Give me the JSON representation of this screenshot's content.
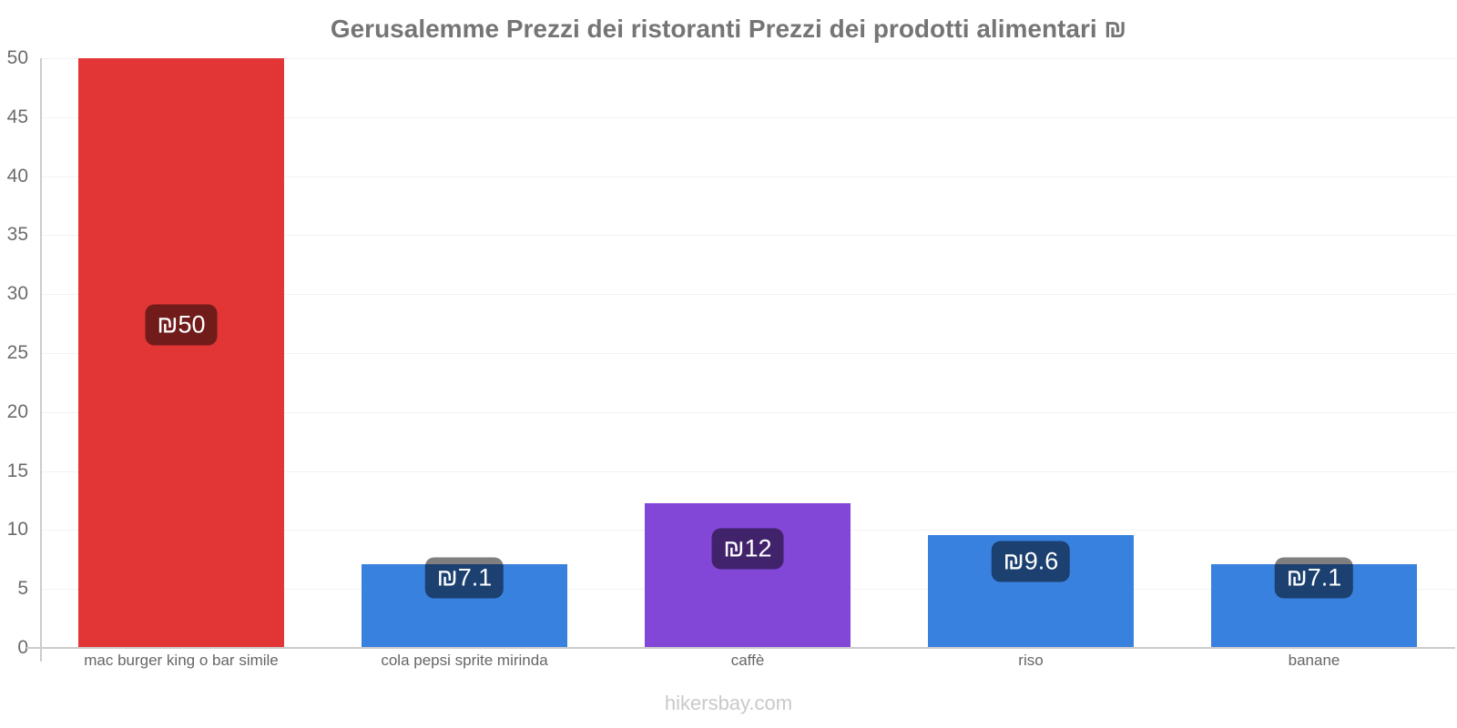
{
  "chart_data": {
    "type": "bar",
    "title": "Gerusalemme Prezzi dei ristoranti Prezzi dei prodotti alimentari ₪",
    "currency_symbol": "₪",
    "categories": [
      "mac burger king o bar simile",
      "cola pepsi sprite mirinda",
      "caffè",
      "riso",
      "banane"
    ],
    "values": [
      50,
      7.1,
      12.3,
      9.6,
      7.1
    ],
    "data_labels": [
      "₪50",
      "₪7.1",
      "₪12",
      "₪9.6",
      "₪7.1"
    ],
    "bar_colors": [
      "#e23636",
      "#3981de",
      "#8347d8",
      "#3981de",
      "#3981de"
    ],
    "xlabel": "",
    "ylabel": "",
    "ylim": [
      0,
      50
    ],
    "yticks": [
      0,
      5,
      10,
      15,
      20,
      25,
      30,
      35,
      40,
      45,
      50
    ],
    "grid": true,
    "legend": "none"
  },
  "colors": {
    "bar_red": "#e23636",
    "bar_blue": "#3981de",
    "bar_purple": "#8347d8",
    "badge_background": "rgba(0,0,0,0.5)",
    "badge_text": "#ffffff",
    "title_text": "#757575",
    "axis_text": "#6b6b6b",
    "axis_line": "#cccccc",
    "gridline": "#f2f2f2",
    "watermark_text": "#c9c9c9"
  },
  "watermark": {
    "text": "hikersbay.com"
  }
}
